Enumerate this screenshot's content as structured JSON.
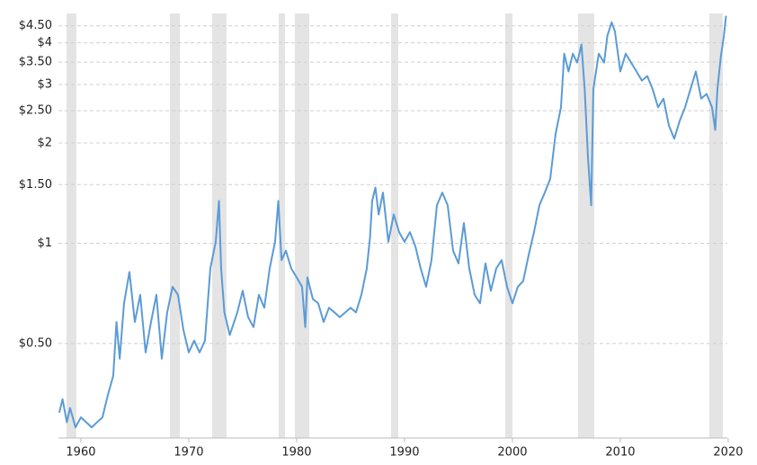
{
  "chart_data": {
    "type": "line",
    "log_scale_y": true,
    "grid": true,
    "color": "#5b9bd5",
    "shade_color": "#e4e4e4",
    "xlim": [
      1957.92,
      2019.92
    ],
    "xticks": [
      1960,
      1970,
      1980,
      1990,
      2000,
      2010,
      2020
    ],
    "ylim": [
      0.26,
      4.9
    ],
    "yticks": [
      {
        "value": 0.5,
        "label": "$0.50"
      },
      {
        "value": 1,
        "label": "$1"
      },
      {
        "value": 1.5,
        "label": "$1.50"
      },
      {
        "value": 2,
        "label": "$2"
      },
      {
        "value": 2.5,
        "label": "$2.50"
      },
      {
        "value": 3,
        "label": "$3"
      },
      {
        "value": 3.5,
        "label": "$3.50"
      },
      {
        "value": 4,
        "label": "$4"
      },
      {
        "value": 4.5,
        "label": "$4.50"
      }
    ],
    "shaded_ranges": [
      [
        1958.67,
        1959.58
      ],
      [
        1968.25,
        1969.17
      ],
      [
        1972.17,
        1973.5
      ],
      [
        1978.33,
        1978.92
      ],
      [
        1979.83,
        1981.17
      ],
      [
        1988.75,
        1989.42
      ],
      [
        1999.33,
        2000.0
      ],
      [
        2006.08,
        2007.58
      ],
      [
        2018.25,
        2019.5
      ]
    ],
    "x": [
      1958.0,
      1958.3,
      1958.7,
      1959.0,
      1959.5,
      1960.0,
      1960.5,
      1961.0,
      1961.5,
      1962.0,
      1962.5,
      1963.0,
      1963.3,
      1963.6,
      1964.0,
      1964.5,
      1965.0,
      1965.5,
      1966.0,
      1966.5,
      1967.0,
      1967.5,
      1968.0,
      1968.5,
      1969.0,
      1969.5,
      1970.0,
      1970.5,
      1971.0,
      1971.5,
      1972.0,
      1972.5,
      1972.8,
      1973.0,
      1973.3,
      1973.8,
      1974.5,
      1975.0,
      1975.5,
      1976.0,
      1976.5,
      1977.0,
      1977.5,
      1978.0,
      1978.3,
      1978.6,
      1979.0,
      1979.5,
      1980.0,
      1980.5,
      1980.8,
      1981.0,
      1981.5,
      1982.0,
      1982.5,
      1983.0,
      1983.5,
      1984.0,
      1985.0,
      1985.5,
      1986.0,
      1986.5,
      1986.8,
      1987.0,
      1987.3,
      1987.6,
      1988.0,
      1988.5,
      1989.0,
      1989.5,
      1990.0,
      1990.5,
      1991.0,
      1991.5,
      1992.0,
      1992.5,
      1993.0,
      1993.5,
      1994.0,
      1994.5,
      1995.0,
      1995.5,
      1996.0,
      1996.5,
      1997.0,
      1997.5,
      1998.0,
      1998.5,
      1999.0,
      1999.5,
      2000.0,
      2000.5,
      2001.0,
      2001.5,
      2002.0,
      2002.5,
      2003.0,
      2003.5,
      2004.0,
      2004.5,
      2004.8,
      2005.2,
      2005.6,
      2006.0,
      2006.4,
      2006.7,
      2007.0,
      2007.3,
      2007.5,
      2008.0,
      2008.5,
      2008.8,
      2009.2,
      2009.5,
      2010.0,
      2010.5,
      2011.0,
      2011.5,
      2012.0,
      2012.5,
      2013.0,
      2013.5,
      2014.0,
      2014.5,
      2015.0,
      2015.5,
      2016.0,
      2016.5,
      2017.0,
      2017.5,
      2018.0,
      2018.5,
      2018.8,
      2019.0,
      2019.3,
      2019.6,
      2019.8
    ],
    "values": [
      0.31,
      0.34,
      0.29,
      0.32,
      0.28,
      0.3,
      0.29,
      0.28,
      0.29,
      0.3,
      0.35,
      0.4,
      0.58,
      0.45,
      0.66,
      0.82,
      0.58,
      0.7,
      0.47,
      0.58,
      0.7,
      0.45,
      0.62,
      0.74,
      0.7,
      0.55,
      0.47,
      0.51,
      0.47,
      0.51,
      0.84,
      1.01,
      1.34,
      0.84,
      0.62,
      0.53,
      0.62,
      0.72,
      0.6,
      0.56,
      0.7,
      0.64,
      0.84,
      1.01,
      1.34,
      0.89,
      0.95,
      0.84,
      0.79,
      0.74,
      0.56,
      0.79,
      0.68,
      0.66,
      0.58,
      0.64,
      0.62,
      0.6,
      0.64,
      0.62,
      0.7,
      0.84,
      1.04,
      1.34,
      1.47,
      1.22,
      1.42,
      1.01,
      1.22,
      1.08,
      1.01,
      1.08,
      0.98,
      0.84,
      0.74,
      0.89,
      1.3,
      1.42,
      1.3,
      0.95,
      0.87,
      1.15,
      0.84,
      0.7,
      0.66,
      0.87,
      0.72,
      0.84,
      0.89,
      0.74,
      0.66,
      0.74,
      0.77,
      0.92,
      1.08,
      1.3,
      1.42,
      1.56,
      2.13,
      2.56,
      3.71,
      3.28,
      3.71,
      3.49,
      3.95,
      2.9,
      1.82,
      1.3,
      2.9,
      3.71,
      3.49,
      4.2,
      4.61,
      4.33,
      3.28,
      3.71,
      3.49,
      3.28,
      3.08,
      3.18,
      2.9,
      2.56,
      2.72,
      2.26,
      2.06,
      2.33,
      2.56,
      2.9,
      3.28,
      2.72,
      2.81,
      2.56,
      2.19,
      2.9,
      3.6,
      4.2,
      4.82
    ]
  }
}
